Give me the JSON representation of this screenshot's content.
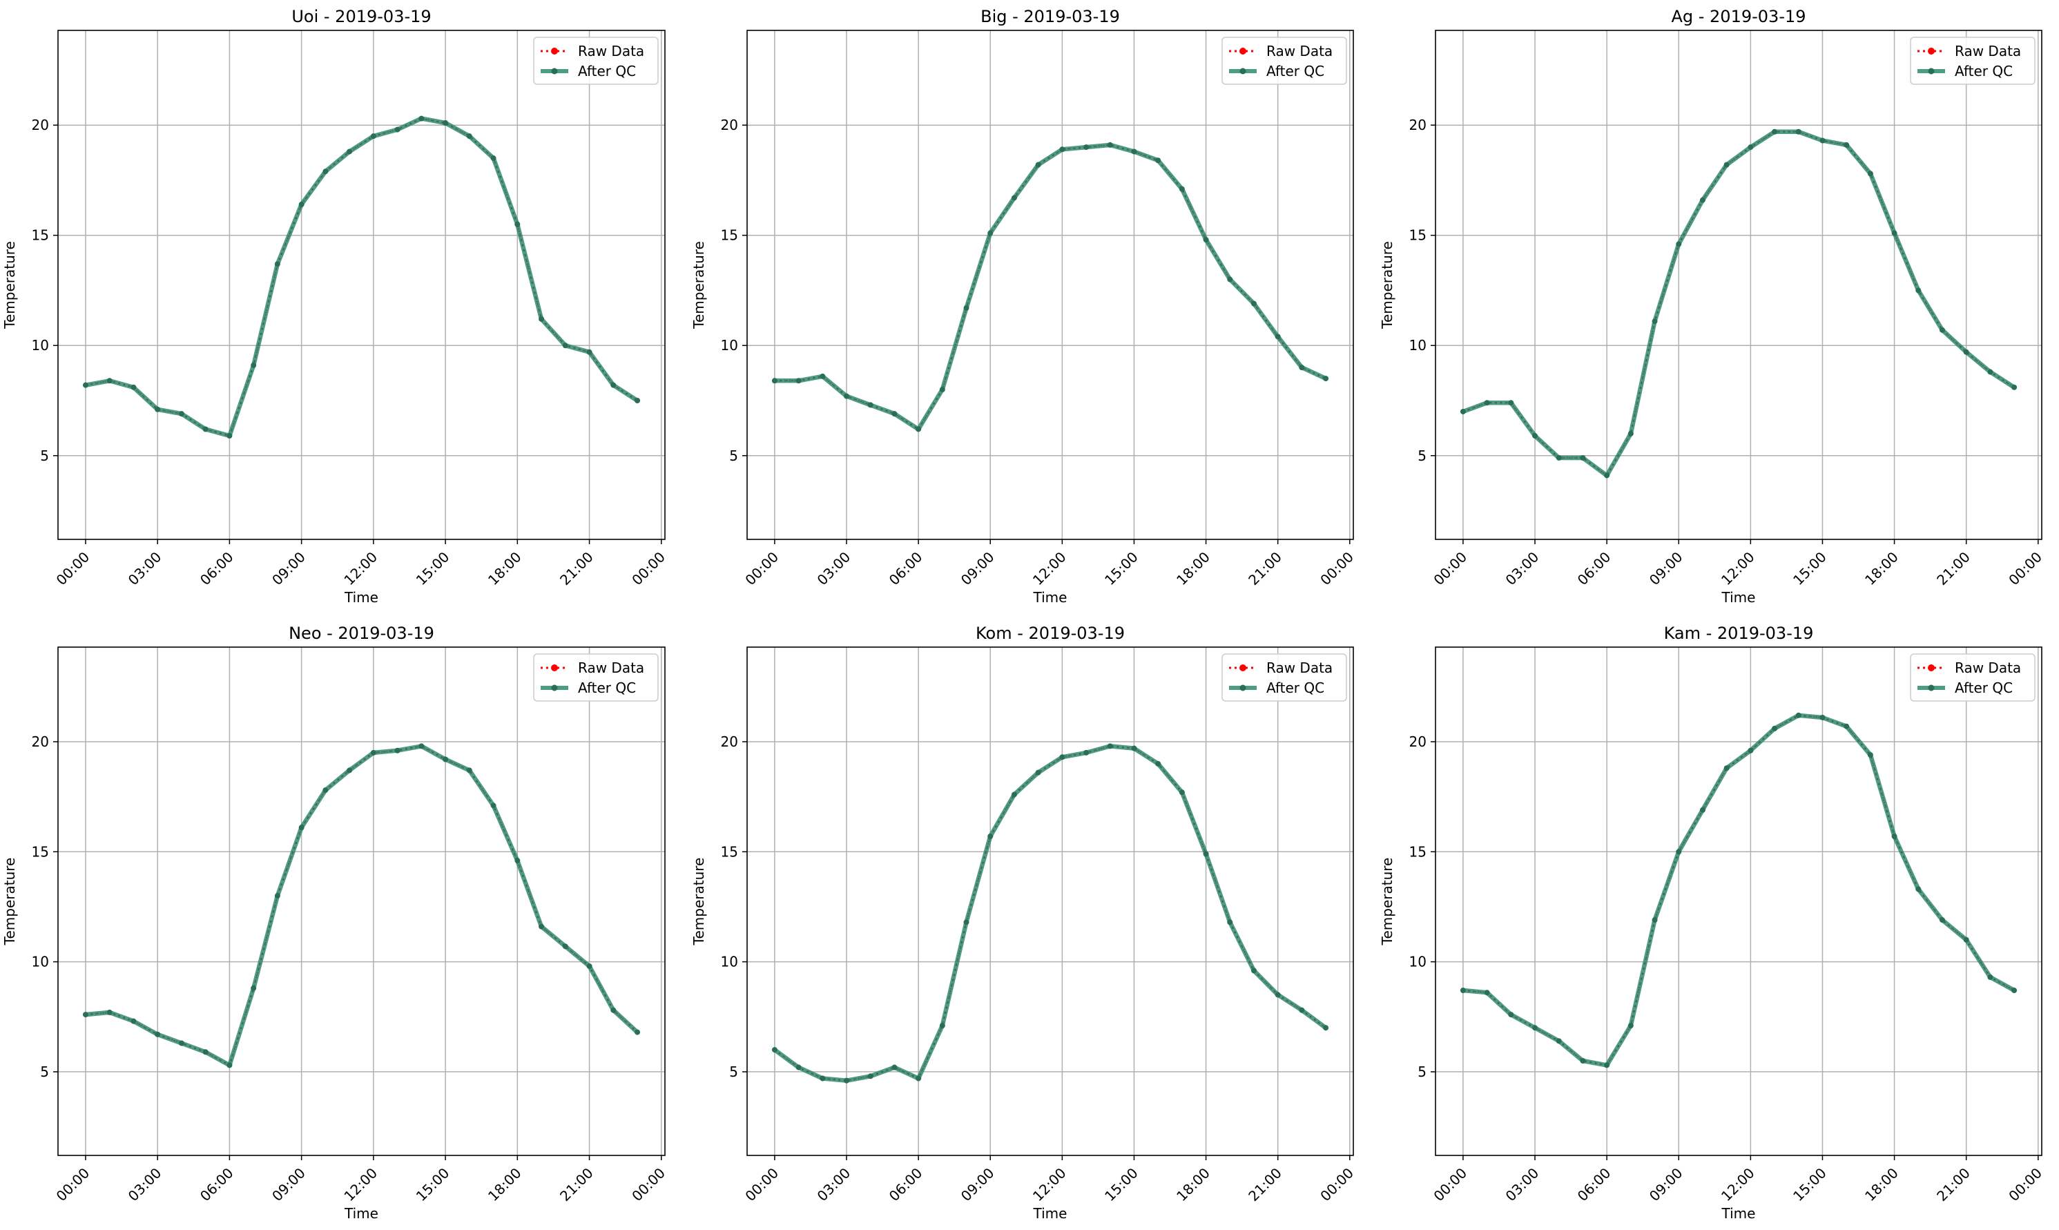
{
  "figure": {
    "background": "#ffffff"
  },
  "colors": {
    "raw": "#ff0000",
    "qc": "#2e8b6f",
    "marker": "#2a6e5a",
    "grid": "#b0b0b0",
    "axis": "#000000"
  },
  "chart_data": [
    {
      "type": "line",
      "title": "Uoi - 2019-03-19",
      "xlabel": "Time",
      "ylabel": "Temperature",
      "x": [
        0,
        1,
        2,
        3,
        4,
        5,
        6,
        7,
        8,
        9,
        10,
        11,
        12,
        13,
        14,
        15,
        16,
        17,
        18,
        19,
        20,
        21,
        22,
        23
      ],
      "xticks": [
        0,
        3,
        6,
        9,
        12,
        15,
        18,
        21,
        24
      ],
      "xticklabels": [
        "00:00",
        "03:00",
        "06:00",
        "09:00",
        "12:00",
        "15:00",
        "18:00",
        "21:00",
        "00:00"
      ],
      "xlim": [
        -1.15,
        24.15
      ],
      "ylim": [
        1.2,
        24.3
      ],
      "yticks": [
        5,
        10,
        15,
        20
      ],
      "grid": true,
      "legend": "top-right",
      "series": [
        {
          "name": "Raw Data",
          "style": "dotted",
          "values": [
            8.2,
            8.4,
            8.1,
            7.1,
            6.9,
            6.2,
            5.9,
            9.1,
            13.7,
            16.4,
            17.9,
            18.8,
            19.5,
            19.8,
            20.3,
            20.1,
            19.5,
            18.5,
            15.5,
            11.2,
            10.0,
            9.7,
            8.2,
            7.5
          ]
        },
        {
          "name": "After QC",
          "style": "solid",
          "values": [
            8.2,
            8.4,
            8.1,
            7.1,
            6.9,
            6.2,
            5.9,
            9.1,
            13.7,
            16.4,
            17.9,
            18.8,
            19.5,
            19.8,
            20.3,
            20.1,
            19.5,
            18.5,
            15.5,
            11.2,
            10.0,
            9.7,
            8.2,
            7.5
          ]
        }
      ]
    },
    {
      "type": "line",
      "title": "Big - 2019-03-19",
      "xlabel": "Time",
      "ylabel": "Temperature",
      "x": [
        0,
        1,
        2,
        3,
        4,
        5,
        6,
        7,
        8,
        9,
        10,
        11,
        12,
        13,
        14,
        15,
        16,
        17,
        18,
        19,
        20,
        21,
        22,
        23
      ],
      "xticks": [
        0,
        3,
        6,
        9,
        12,
        15,
        18,
        21,
        24
      ],
      "xticklabels": [
        "00:00",
        "03:00",
        "06:00",
        "09:00",
        "12:00",
        "15:00",
        "18:00",
        "21:00",
        "00:00"
      ],
      "xlim": [
        -1.15,
        24.15
      ],
      "ylim": [
        1.2,
        24.3
      ],
      "yticks": [
        5,
        10,
        15,
        20
      ],
      "grid": true,
      "legend": "top-right",
      "series": [
        {
          "name": "Raw Data",
          "style": "dotted",
          "values": [
            8.4,
            8.4,
            8.6,
            7.7,
            7.3,
            6.9,
            6.2,
            8.0,
            11.7,
            15.1,
            16.7,
            18.2,
            18.9,
            19.0,
            19.1,
            18.8,
            18.4,
            17.1,
            14.8,
            13.0,
            11.9,
            10.4,
            9.0,
            8.5
          ]
        },
        {
          "name": "After QC",
          "style": "solid",
          "values": [
            8.4,
            8.4,
            8.6,
            7.7,
            7.3,
            6.9,
            6.2,
            8.0,
            11.7,
            15.1,
            16.7,
            18.2,
            18.9,
            19.0,
            19.1,
            18.8,
            18.4,
            17.1,
            14.8,
            13.0,
            11.9,
            10.4,
            9.0,
            8.5
          ]
        }
      ]
    },
    {
      "type": "line",
      "title": "Ag - 2019-03-19",
      "xlabel": "Time",
      "ylabel": "Temperature",
      "x": [
        0,
        1,
        2,
        3,
        4,
        5,
        6,
        7,
        8,
        9,
        10,
        11,
        12,
        13,
        14,
        15,
        16,
        17,
        18,
        19,
        20,
        21,
        22,
        23
      ],
      "xticks": [
        0,
        3,
        6,
        9,
        12,
        15,
        18,
        21,
        24
      ],
      "xticklabels": [
        "00:00",
        "03:00",
        "06:00",
        "09:00",
        "12:00",
        "15:00",
        "18:00",
        "21:00",
        "00:00"
      ],
      "xlim": [
        -1.15,
        24.15
      ],
      "ylim": [
        1.2,
        24.3
      ],
      "yticks": [
        5,
        10,
        15,
        20
      ],
      "grid": true,
      "legend": "top-right",
      "series": [
        {
          "name": "Raw Data",
          "style": "dotted",
          "values": [
            7.0,
            7.4,
            7.4,
            5.9,
            4.9,
            4.9,
            4.1,
            6.0,
            11.1,
            14.6,
            16.6,
            18.2,
            19.0,
            19.7,
            19.7,
            19.3,
            19.1,
            17.8,
            15.1,
            12.5,
            10.7,
            9.7,
            8.8,
            8.1
          ]
        },
        {
          "name": "After QC",
          "style": "solid",
          "values": [
            7.0,
            7.4,
            7.4,
            5.9,
            4.9,
            4.9,
            4.1,
            6.0,
            11.1,
            14.6,
            16.6,
            18.2,
            19.0,
            19.7,
            19.7,
            19.3,
            19.1,
            17.8,
            15.1,
            12.5,
            10.7,
            9.7,
            8.8,
            8.1
          ]
        }
      ]
    },
    {
      "type": "line",
      "title": "Neo - 2019-03-19",
      "xlabel": "Time",
      "ylabel": "Temperature",
      "x": [
        0,
        1,
        2,
        3,
        4,
        5,
        6,
        7,
        8,
        9,
        10,
        11,
        12,
        13,
        14,
        15,
        16,
        17,
        18,
        19,
        20,
        21,
        22,
        23
      ],
      "xticks": [
        0,
        3,
        6,
        9,
        12,
        15,
        18,
        21,
        24
      ],
      "xticklabels": [
        "00:00",
        "03:00",
        "06:00",
        "09:00",
        "12:00",
        "15:00",
        "18:00",
        "21:00",
        "00:00"
      ],
      "xlim": [
        -1.15,
        24.15
      ],
      "ylim": [
        1.2,
        24.3
      ],
      "yticks": [
        5,
        10,
        15,
        20
      ],
      "grid": true,
      "legend": "top-right",
      "series": [
        {
          "name": "Raw Data",
          "style": "dotted",
          "values": [
            7.6,
            7.7,
            7.3,
            6.7,
            6.3,
            5.9,
            5.3,
            8.8,
            13.0,
            16.1,
            17.8,
            18.7,
            19.5,
            19.6,
            19.8,
            19.2,
            18.7,
            17.1,
            14.6,
            11.6,
            10.7,
            9.8,
            7.8,
            6.8
          ]
        },
        {
          "name": "After QC",
          "style": "solid",
          "values": [
            7.6,
            7.7,
            7.3,
            6.7,
            6.3,
            5.9,
            5.3,
            8.8,
            13.0,
            16.1,
            17.8,
            18.7,
            19.5,
            19.6,
            19.8,
            19.2,
            18.7,
            17.1,
            14.6,
            11.6,
            10.7,
            9.8,
            7.8,
            6.8
          ]
        }
      ]
    },
    {
      "type": "line",
      "title": "Kom - 2019-03-19",
      "xlabel": "Time",
      "ylabel": "Temperature",
      "x": [
        0,
        1,
        2,
        3,
        4,
        5,
        6,
        7,
        8,
        9,
        10,
        11,
        12,
        13,
        14,
        15,
        16,
        17,
        18,
        19,
        20,
        21,
        22,
        23
      ],
      "xticks": [
        0,
        3,
        6,
        9,
        12,
        15,
        18,
        21,
        24
      ],
      "xticklabels": [
        "00:00",
        "03:00",
        "06:00",
        "09:00",
        "12:00",
        "15:00",
        "18:00",
        "21:00",
        "00:00"
      ],
      "xlim": [
        -1.15,
        24.15
      ],
      "ylim": [
        1.2,
        24.3
      ],
      "yticks": [
        5,
        10,
        15,
        20
      ],
      "grid": true,
      "legend": "top-right",
      "series": [
        {
          "name": "Raw Data",
          "style": "dotted",
          "values": [
            6.0,
            5.2,
            4.7,
            4.6,
            4.8,
            5.2,
            4.7,
            7.1,
            11.8,
            15.7,
            17.6,
            18.6,
            19.3,
            19.5,
            19.8,
            19.7,
            19.0,
            17.7,
            14.9,
            11.8,
            9.6,
            8.5,
            7.8,
            7.0
          ]
        },
        {
          "name": "After QC",
          "style": "solid",
          "values": [
            6.0,
            5.2,
            4.7,
            4.6,
            4.8,
            5.2,
            4.7,
            7.1,
            11.8,
            15.7,
            17.6,
            18.6,
            19.3,
            19.5,
            19.8,
            19.7,
            19.0,
            17.7,
            14.9,
            11.8,
            9.6,
            8.5,
            7.8,
            7.0
          ]
        }
      ]
    },
    {
      "type": "line",
      "title": "Kam - 2019-03-19",
      "xlabel": "Time",
      "ylabel": "Temperature",
      "x": [
        0,
        1,
        2,
        3,
        4,
        5,
        6,
        7,
        8,
        9,
        10,
        11,
        12,
        13,
        14,
        15,
        16,
        17,
        18,
        19,
        20,
        21,
        22,
        23
      ],
      "xticks": [
        0,
        3,
        6,
        9,
        12,
        15,
        18,
        21,
        24
      ],
      "xticklabels": [
        "00:00",
        "03:00",
        "06:00",
        "09:00",
        "12:00",
        "15:00",
        "18:00",
        "21:00",
        "00:00"
      ],
      "xlim": [
        -1.15,
        24.15
      ],
      "ylim": [
        1.2,
        24.3
      ],
      "yticks": [
        5,
        10,
        15,
        20
      ],
      "grid": true,
      "legend": "top-right",
      "series": [
        {
          "name": "Raw Data",
          "style": "dotted",
          "values": [
            8.7,
            8.6,
            7.6,
            7.0,
            6.4,
            5.5,
            5.3,
            7.1,
            11.9,
            15.0,
            16.9,
            18.8,
            19.6,
            20.6,
            21.2,
            21.1,
            20.7,
            19.4,
            15.7,
            13.3,
            11.9,
            11.0,
            9.3,
            8.7
          ]
        },
        {
          "name": "After QC",
          "style": "solid",
          "values": [
            8.7,
            8.6,
            7.6,
            7.0,
            6.4,
            5.5,
            5.3,
            7.1,
            11.9,
            15.0,
            16.9,
            18.8,
            19.6,
            20.6,
            21.2,
            21.1,
            20.7,
            19.4,
            15.7,
            13.3,
            11.9,
            11.0,
            9.3,
            8.7
          ]
        }
      ]
    }
  ]
}
